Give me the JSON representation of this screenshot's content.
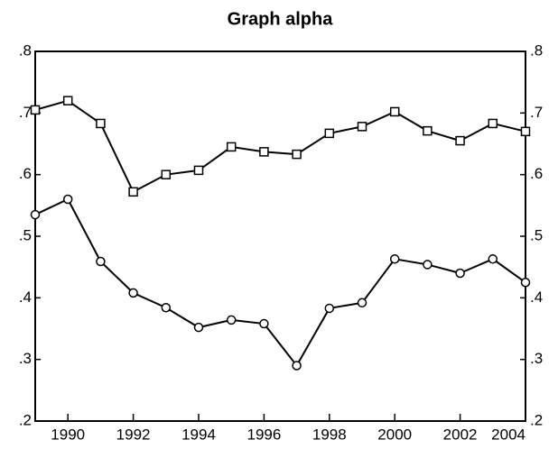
{
  "chart_data": {
    "type": "line",
    "title": "Graph alpha",
    "x": [
      1989,
      1990,
      1991,
      1992,
      1993,
      1994,
      1995,
      1996,
      1997,
      1998,
      1999,
      2000,
      2001,
      2002,
      2003,
      2004
    ],
    "series": [
      {
        "color": "#000000",
        "marker": "square",
        "values": [
          0.705,
          0.72,
          0.683,
          0.572,
          0.6,
          0.607,
          0.645,
          0.637,
          0.633,
          0.667,
          0.678,
          0.702,
          0.671,
          0.655,
          0.683,
          0.67
        ]
      },
      {
        "color": "#000000",
        "marker": "circle",
        "values": [
          0.535,
          0.56,
          0.459,
          0.408,
          0.384,
          0.352,
          0.364,
          0.358,
          0.29,
          0.383,
          0.392,
          0.463,
          0.454,
          0.44,
          0.463,
          0.425
        ]
      }
    ],
    "xlim": [
      1989,
      2004
    ],
    "xticks": [
      1990,
      1992,
      1994,
      1996,
      1998,
      2000,
      2002,
      2004
    ],
    "ylim": [
      0.2,
      0.8
    ],
    "yticks": [
      {
        "value": 0.2,
        "label": ".2"
      },
      {
        "value": 0.3,
        "label": ".3"
      },
      {
        "value": 0.4,
        "label": ".4"
      },
      {
        "value": 0.5,
        "label": ".5"
      },
      {
        "value": 0.6,
        "label": ".6"
      },
      {
        "value": 0.7,
        "label": ".7"
      },
      {
        "value": 0.8,
        "label": ".8"
      }
    ],
    "grid": false
  }
}
